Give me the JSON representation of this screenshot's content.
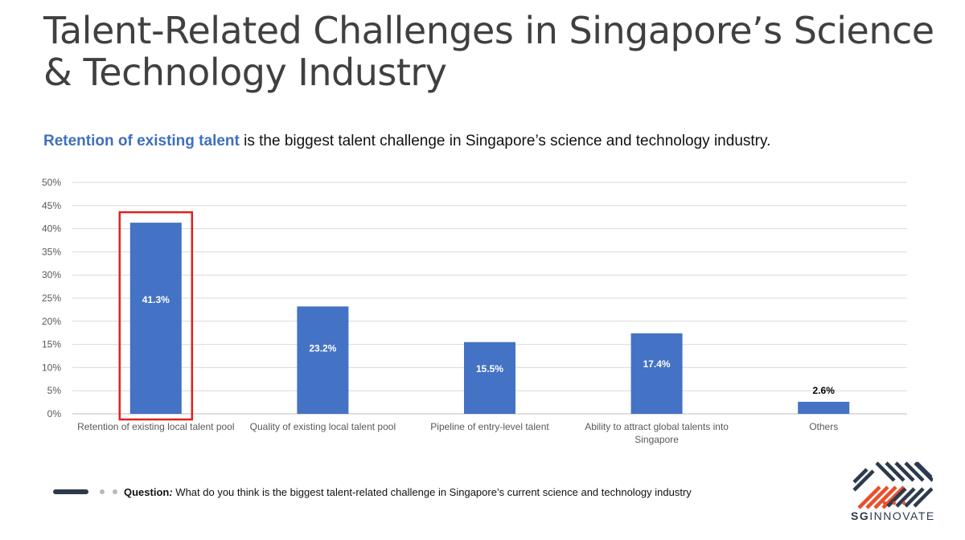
{
  "header": {
    "title": "Talent-Related Challenges in Singapore’s Science & Technology Industry",
    "subtitle_highlight": "Retention of existing talent",
    "subtitle_rest": " is the biggest talent challenge in Singapore’s science and technology industry."
  },
  "chart_data": {
    "type": "bar",
    "categories": [
      "Retention of existing local talent pool",
      "Quality of existing local talent pool",
      "Pipeline of entry-level talent",
      "Ability to attract global talents into Singapore",
      "Others"
    ],
    "category_lines": [
      [
        "Retention of existing local talent pool"
      ],
      [
        "Quality of existing local talent pool"
      ],
      [
        "Pipeline of entry-level talent"
      ],
      [
        "Ability to attract global talents into",
        "Singapore"
      ],
      [
        "Others"
      ]
    ],
    "values": [
      41.3,
      23.2,
      15.5,
      17.4,
      2.6
    ],
    "data_labels": [
      "41.3%",
      "23.2%",
      "15.5%",
      "17.4%",
      "2.6%"
    ],
    "ylim": [
      0,
      50
    ],
    "yticks": [
      "0%",
      "5%",
      "10%",
      "15%",
      "20%",
      "25%",
      "30%",
      "35%",
      "40%",
      "45%",
      "50%"
    ],
    "grid": true,
    "highlight_index": 0,
    "colors": {
      "bar": "#4472c4",
      "highlight_box": "#e02020",
      "grid": "#d9d9d9",
      "label_inside": "#ffffff",
      "label_outside": "#000000"
    }
  },
  "footer": {
    "question_label": "Question",
    "question_colon": ":",
    "question_text": " What do you think is the biggest talent-related challenge in Singapore’s current science and technology industry"
  },
  "logo": {
    "text_bold": "SG",
    "text_rest": "INNOVATE",
    "colors": {
      "dark": "#2c3a4e",
      "accent": "#e8502a"
    }
  }
}
